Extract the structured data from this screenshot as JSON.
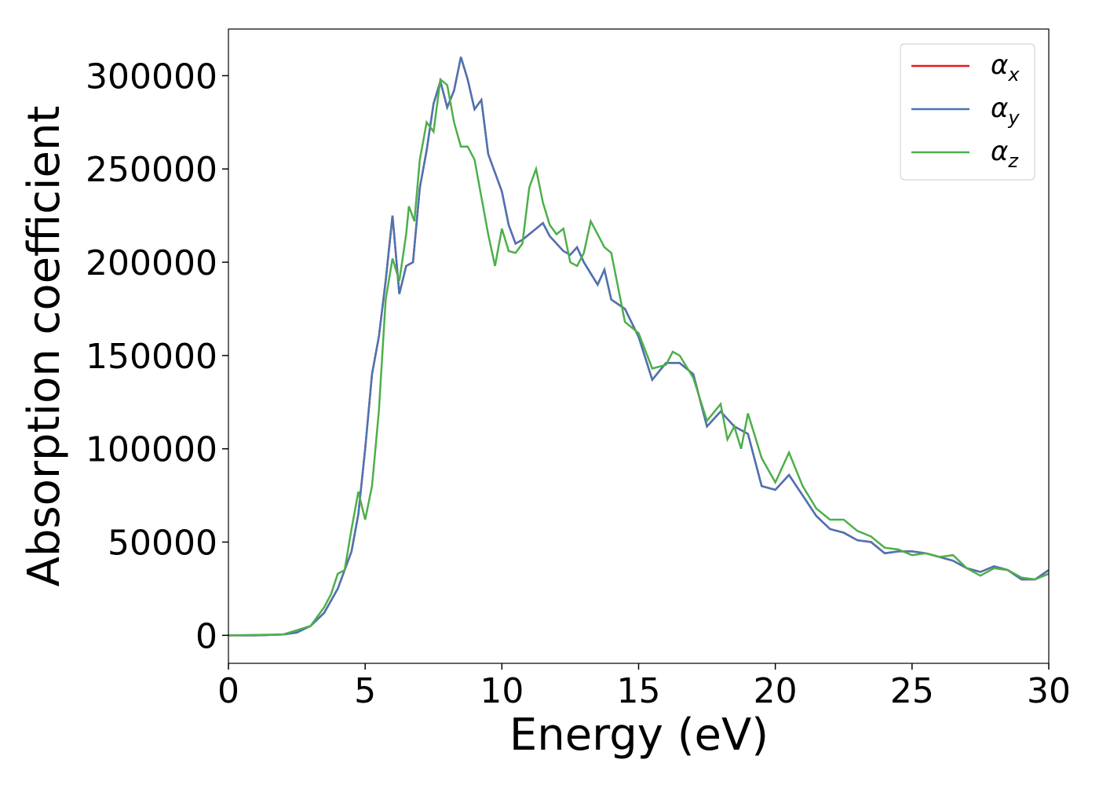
{
  "chart_data": {
    "type": "line",
    "xlabel": "Energy (eV)",
    "ylabel": "Absorption coefficient",
    "xlim": [
      0,
      30
    ],
    "ylim": [
      -15000,
      325000
    ],
    "xticks": [
      0,
      5,
      10,
      15,
      20,
      25,
      30
    ],
    "yticks": [
      0,
      50000,
      100000,
      150000,
      200000,
      250000,
      300000
    ],
    "grid": false,
    "legend": "upper right",
    "series": [
      {
        "name": "αx",
        "color": "#e41a1c",
        "x": [
          0,
          1,
          2,
          2.5,
          3,
          3.5,
          4,
          4.5,
          4.75,
          5,
          5.25,
          5.5,
          5.75,
          6,
          6.25,
          6.5,
          6.75,
          7,
          7.25,
          7.5,
          7.75,
          8,
          8.25,
          8.5,
          8.75,
          9,
          9.25,
          9.5,
          9.75,
          10,
          10.25,
          10.5,
          10.75,
          11,
          11.25,
          11.5,
          11.75,
          12,
          12.25,
          12.5,
          12.75,
          13,
          13.25,
          13.5,
          13.75,
          14,
          14.5,
          15,
          15.5,
          16,
          16.5,
          17,
          17.5,
          18,
          18.5,
          19,
          19.5,
          20,
          20.5,
          21,
          21.5,
          22,
          22.5,
          23,
          23.5,
          24,
          24.5,
          25,
          25.5,
          26,
          26.5,
          27,
          27.5,
          28,
          28.5,
          29,
          29.5,
          30
        ],
        "values": [
          0,
          0,
          500,
          1500,
          5000,
          12000,
          25000,
          45000,
          65000,
          100000,
          140000,
          160000,
          190000,
          225000,
          183000,
          198000,
          200000,
          240000,
          260000,
          285000,
          297000,
          283000,
          292000,
          310000,
          298000,
          282000,
          287000,
          258000,
          248000,
          238000,
          220000,
          210000,
          212000,
          215000,
          218000,
          221000,
          214000,
          210000,
          206000,
          204000,
          208000,
          200000,
          194000,
          188000,
          196000,
          180000,
          175000,
          160000,
          137000,
          146000,
          146000,
          140000,
          112000,
          120000,
          112000,
          108000,
          80000,
          78000,
          86000,
          75000,
          64000,
          57000,
          55000,
          51000,
          50000,
          44000,
          45000,
          45000,
          44000,
          42000,
          40000,
          36000,
          34000,
          37000,
          35000,
          30000,
          30000,
          35000
        ]
      },
      {
        "name": "αy",
        "color": "#4a74b4",
        "x": [
          0,
          1,
          2,
          2.5,
          3,
          3.5,
          4,
          4.5,
          4.75,
          5,
          5.25,
          5.5,
          5.75,
          6,
          6.25,
          6.5,
          6.75,
          7,
          7.25,
          7.5,
          7.75,
          8,
          8.25,
          8.5,
          8.75,
          9,
          9.25,
          9.5,
          9.75,
          10,
          10.25,
          10.5,
          10.75,
          11,
          11.25,
          11.5,
          11.75,
          12,
          12.25,
          12.5,
          12.75,
          13,
          13.25,
          13.5,
          13.75,
          14,
          14.5,
          15,
          15.5,
          16,
          16.5,
          17,
          17.5,
          18,
          18.5,
          19,
          19.5,
          20,
          20.5,
          21,
          21.5,
          22,
          22.5,
          23,
          23.5,
          24,
          24.5,
          25,
          25.5,
          26,
          26.5,
          27,
          27.5,
          28,
          28.5,
          29,
          29.5,
          30
        ],
        "values": [
          0,
          0,
          500,
          1500,
          5000,
          12000,
          25000,
          45000,
          65000,
          100000,
          140000,
          160000,
          190000,
          225000,
          183000,
          198000,
          200000,
          240000,
          260000,
          285000,
          297000,
          283000,
          292000,
          310000,
          298000,
          282000,
          287000,
          258000,
          248000,
          238000,
          220000,
          210000,
          212000,
          215000,
          218000,
          221000,
          214000,
          210000,
          206000,
          204000,
          208000,
          200000,
          194000,
          188000,
          196000,
          180000,
          175000,
          160000,
          137000,
          146000,
          146000,
          140000,
          112000,
          120000,
          112000,
          108000,
          80000,
          78000,
          86000,
          75000,
          64000,
          57000,
          55000,
          51000,
          50000,
          44000,
          45000,
          45000,
          44000,
          42000,
          40000,
          36000,
          34000,
          37000,
          35000,
          30000,
          30000,
          35000
        ]
      },
      {
        "name": "αz",
        "color": "#4daf4a",
        "x": [
          0,
          2,
          3,
          3.5,
          3.75,
          4,
          4.25,
          4.5,
          4.75,
          5,
          5.25,
          5.5,
          5.75,
          6,
          6.25,
          6.5,
          6.6,
          6.8,
          7,
          7.25,
          7.5,
          7.75,
          8,
          8.25,
          8.5,
          8.75,
          9,
          9.5,
          9.75,
          10,
          10.25,
          10.5,
          10.75,
          11,
          11.25,
          11.5,
          11.75,
          12,
          12.25,
          12.5,
          12.75,
          13,
          13.25,
          13.5,
          13.75,
          14,
          14.5,
          15,
          15.5,
          16,
          16.25,
          16.5,
          17,
          17.5,
          18,
          18.25,
          18.5,
          18.75,
          19,
          19.5,
          20,
          20.5,
          21,
          21.5,
          22,
          22.5,
          23,
          23.5,
          24,
          24.5,
          25,
          25.5,
          26,
          26.5,
          27,
          27.5,
          28,
          28.5,
          29,
          29.5,
          30
        ],
        "values": [
          0,
          500,
          5000,
          15000,
          22000,
          33000,
          35000,
          57000,
          77000,
          62000,
          80000,
          120000,
          180000,
          202000,
          190000,
          215000,
          230000,
          222000,
          255000,
          275000,
          270000,
          298000,
          295000,
          275000,
          262000,
          262000,
          255000,
          215000,
          198000,
          218000,
          206000,
          205000,
          210000,
          240000,
          250000,
          232000,
          220000,
          215000,
          218000,
          200000,
          198000,
          205000,
          222000,
          215000,
          208000,
          205000,
          168000,
          162000,
          143000,
          145000,
          152000,
          150000,
          138000,
          115000,
          124000,
          105000,
          112000,
          100000,
          119000,
          95000,
          82000,
          98000,
          80000,
          68000,
          62000,
          62000,
          56000,
          53000,
          47000,
          46000,
          43000,
          44000,
          42000,
          43000,
          36000,
          32000,
          36000,
          35000,
          31000,
          30000,
          33000
        ]
      }
    ]
  }
}
